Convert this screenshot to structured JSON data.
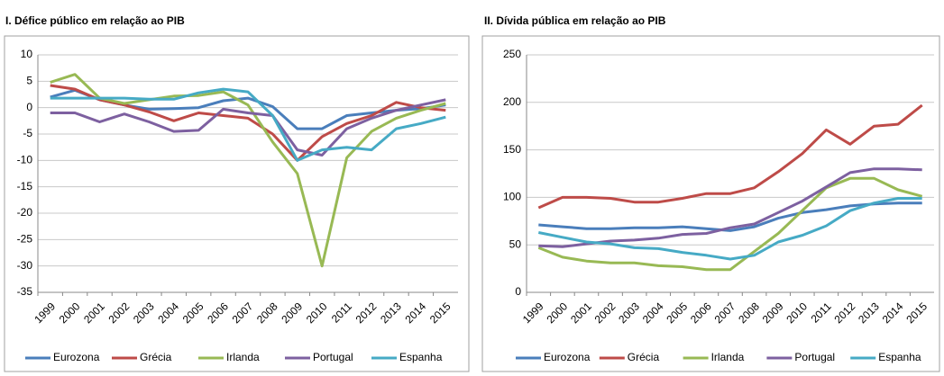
{
  "chart_data": [
    {
      "type": "line",
      "title": "I. Défice público em relação ao PIB",
      "categories": [
        "1999",
        "2000",
        "2001",
        "2002",
        "2003",
        "2004",
        "2005",
        "2006",
        "2007",
        "2008",
        "2009",
        "2010",
        "2011",
        "2012",
        "2013",
        "2014",
        "2015"
      ],
      "ylim": [
        -35,
        10
      ],
      "yticks": [
        -35,
        -30,
        -25,
        -20,
        -15,
        -10,
        -5,
        0,
        5,
        10
      ],
      "grid": true,
      "legend": "bottom",
      "series": [
        {
          "name": "Eurozona",
          "color": "#4a7ebb",
          "values": [
            2,
            3.3,
            1.5,
            0.5,
            -0.3,
            -0.2,
            0,
            1.3,
            1.8,
            0.2,
            -4,
            -4,
            -1.5,
            -1,
            -0.5,
            -0.2,
            0.5
          ]
        },
        {
          "name": "Grécia",
          "color": "#be4b48",
          "values": [
            4.2,
            3.5,
            1.5,
            0.5,
            -0.8,
            -2.5,
            -1,
            -1.5,
            -2,
            -5,
            -10,
            -5.5,
            -3,
            -1.5,
            1,
            0,
            -0.5
          ]
        },
        {
          "name": "Irlanda",
          "color": "#98b954",
          "values": [
            4.8,
            6.3,
            1.8,
            0.8,
            1.5,
            2.2,
            2.3,
            3,
            0.5,
            -6.5,
            -12.5,
            -30,
            -9.5,
            -4.5,
            -2,
            -0.5,
            0.8
          ]
        },
        {
          "name": "Portugal",
          "color": "#7d60a0",
          "values": [
            -1,
            -1,
            -2.7,
            -1.2,
            -2.7,
            -4.5,
            -4.3,
            -0.3,
            -1,
            -1.5,
            -8,
            -9,
            -4,
            -2,
            -0.5,
            0.5,
            1.5
          ]
        },
        {
          "name": "Espanha",
          "color": "#46aac5",
          "values": [
            1.8,
            1.8,
            1.8,
            1.8,
            1.6,
            1.6,
            2.8,
            3.5,
            3,
            -1.5,
            -10,
            -8,
            -7.5,
            -8,
            -4,
            -3,
            -1.8
          ]
        }
      ]
    },
    {
      "type": "line",
      "title": "II. Dívida pública em relação ao PIB",
      "categories": [
        "1999",
        "2000",
        "2001",
        "2002",
        "2003",
        "2004",
        "2005",
        "2006",
        "2007",
        "2008",
        "2009",
        "2010",
        "2011",
        "2012",
        "2013",
        "2014",
        "2015"
      ],
      "ylim": [
        0,
        250
      ],
      "yticks": [
        0,
        50,
        100,
        150,
        200,
        250
      ],
      "grid": true,
      "legend": "bottom",
      "series": [
        {
          "name": "Eurozona",
          "color": "#4a7ebb",
          "values": [
            71,
            69,
            67,
            67,
            68,
            68,
            69,
            67,
            65,
            69,
            78,
            84,
            87,
            91,
            93,
            94,
            94
          ]
        },
        {
          "name": "Grécia",
          "color": "#be4b48",
          "values": [
            89,
            100,
            100,
            99,
            95,
            95,
            99,
            104,
            104,
            110,
            127,
            146,
            171,
            156,
            175,
            177,
            197
          ]
        },
        {
          "name": "Irlanda",
          "color": "#98b954",
          "values": [
            47,
            37,
            33,
            31,
            31,
            28,
            27,
            24,
            24,
            43,
            62,
            86,
            110,
            120,
            120,
            108,
            101
          ]
        },
        {
          "name": "Portugal",
          "color": "#7d60a0",
          "values": [
            49,
            48,
            51,
            54,
            55,
            57,
            61,
            62,
            68,
            72,
            84,
            96,
            111,
            126,
            130,
            130,
            129
          ]
        },
        {
          "name": "Espanha",
          "color": "#46aac5",
          "values": [
            63,
            58,
            53,
            51,
            47,
            46,
            42,
            39,
            35,
            39,
            53,
            60,
            70,
            86,
            94,
            99,
            99
          ]
        }
      ]
    }
  ]
}
